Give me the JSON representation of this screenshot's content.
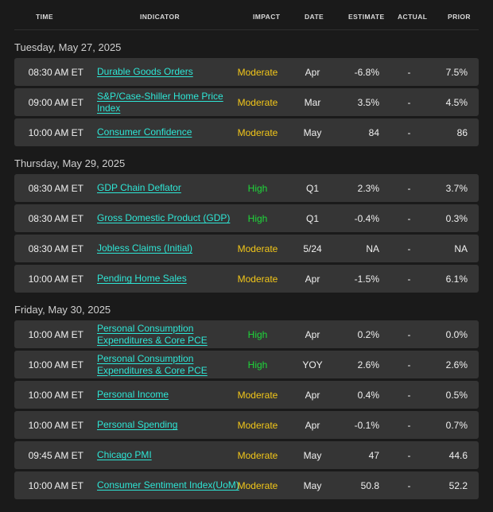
{
  "columns": {
    "time": "TIME",
    "indicator": "INDICATOR",
    "impact": "IMPACT",
    "date": "DATE",
    "estimate": "ESTIMATE",
    "actual": "ACTUAL",
    "prior": "PRIOR"
  },
  "impact_colors": {
    "High": "#1ed83a",
    "Moderate": "#f2c619"
  },
  "link_color": "#2ee6d6",
  "sections": [
    {
      "title": "Tuesday, May 27, 2025",
      "rows": [
        {
          "time": "08:30 AM ET",
          "indicator": "Durable Goods Orders",
          "impact": "Moderate",
          "date": "Apr",
          "estimate": "-6.8%",
          "actual": "-",
          "prior": "7.5%"
        },
        {
          "time": "09:00 AM ET",
          "indicator": "S&P/Case-Shiller Home Price Index",
          "impact": "Moderate",
          "date": "Mar",
          "estimate": "3.5%",
          "actual": "-",
          "prior": "4.5%"
        },
        {
          "time": "10:00 AM ET",
          "indicator": "Consumer Confidence",
          "impact": "Moderate",
          "date": "May",
          "estimate": "84",
          "actual": "-",
          "prior": "86"
        }
      ]
    },
    {
      "title": "Thursday, May 29, 2025",
      "rows": [
        {
          "time": "08:30 AM ET",
          "indicator": "GDP Chain Deflator",
          "impact": "High",
          "date": "Q1",
          "estimate": "2.3%",
          "actual": "-",
          "prior": "3.7%"
        },
        {
          "time": "08:30 AM ET",
          "indicator": "Gross Domestic Product (GDP)",
          "impact": "High",
          "date": "Q1",
          "estimate": "-0.4%",
          "actual": "-",
          "prior": "0.3%"
        },
        {
          "time": "08:30 AM ET",
          "indicator": "Jobless Claims (Initial)",
          "impact": "Moderate",
          "date": "5/24",
          "estimate": "NA",
          "actual": "-",
          "prior": "NA"
        },
        {
          "time": "10:00 AM ET",
          "indicator": "Pending Home Sales",
          "impact": "Moderate",
          "date": "Apr",
          "estimate": "-1.5%",
          "actual": "-",
          "prior": "6.1%"
        }
      ]
    },
    {
      "title": "Friday, May 30, 2025",
      "rows": [
        {
          "time": "10:00 AM ET",
          "indicator": "Personal Consumption Expenditures & Core PCE",
          "impact": "High",
          "date": "Apr",
          "estimate": "0.2%",
          "actual": "-",
          "prior": "0.0%"
        },
        {
          "time": "10:00 AM ET",
          "indicator": "Personal Consumption Expenditures & Core PCE",
          "impact": "High",
          "date": "YOY",
          "estimate": "2.6%",
          "actual": "-",
          "prior": "2.6%"
        },
        {
          "time": "10:00 AM ET",
          "indicator": "Personal Income",
          "impact": "Moderate",
          "date": "Apr",
          "estimate": "0.4%",
          "actual": "-",
          "prior": "0.5%"
        },
        {
          "time": "10:00 AM ET",
          "indicator": "Personal Spending",
          "impact": "Moderate",
          "date": "Apr",
          "estimate": "-0.1%",
          "actual": "-",
          "prior": "0.7%"
        },
        {
          "time": "09:45 AM ET",
          "indicator": "Chicago PMI",
          "impact": "Moderate",
          "date": "May",
          "estimate": "47",
          "actual": "-",
          "prior": "44.6"
        },
        {
          "time": "10:00 AM ET",
          "indicator": "Consumer Sentiment Index(UoM)",
          "impact": "Moderate",
          "date": "May",
          "estimate": "50.8",
          "actual": "-",
          "prior": "52.2"
        }
      ]
    }
  ]
}
